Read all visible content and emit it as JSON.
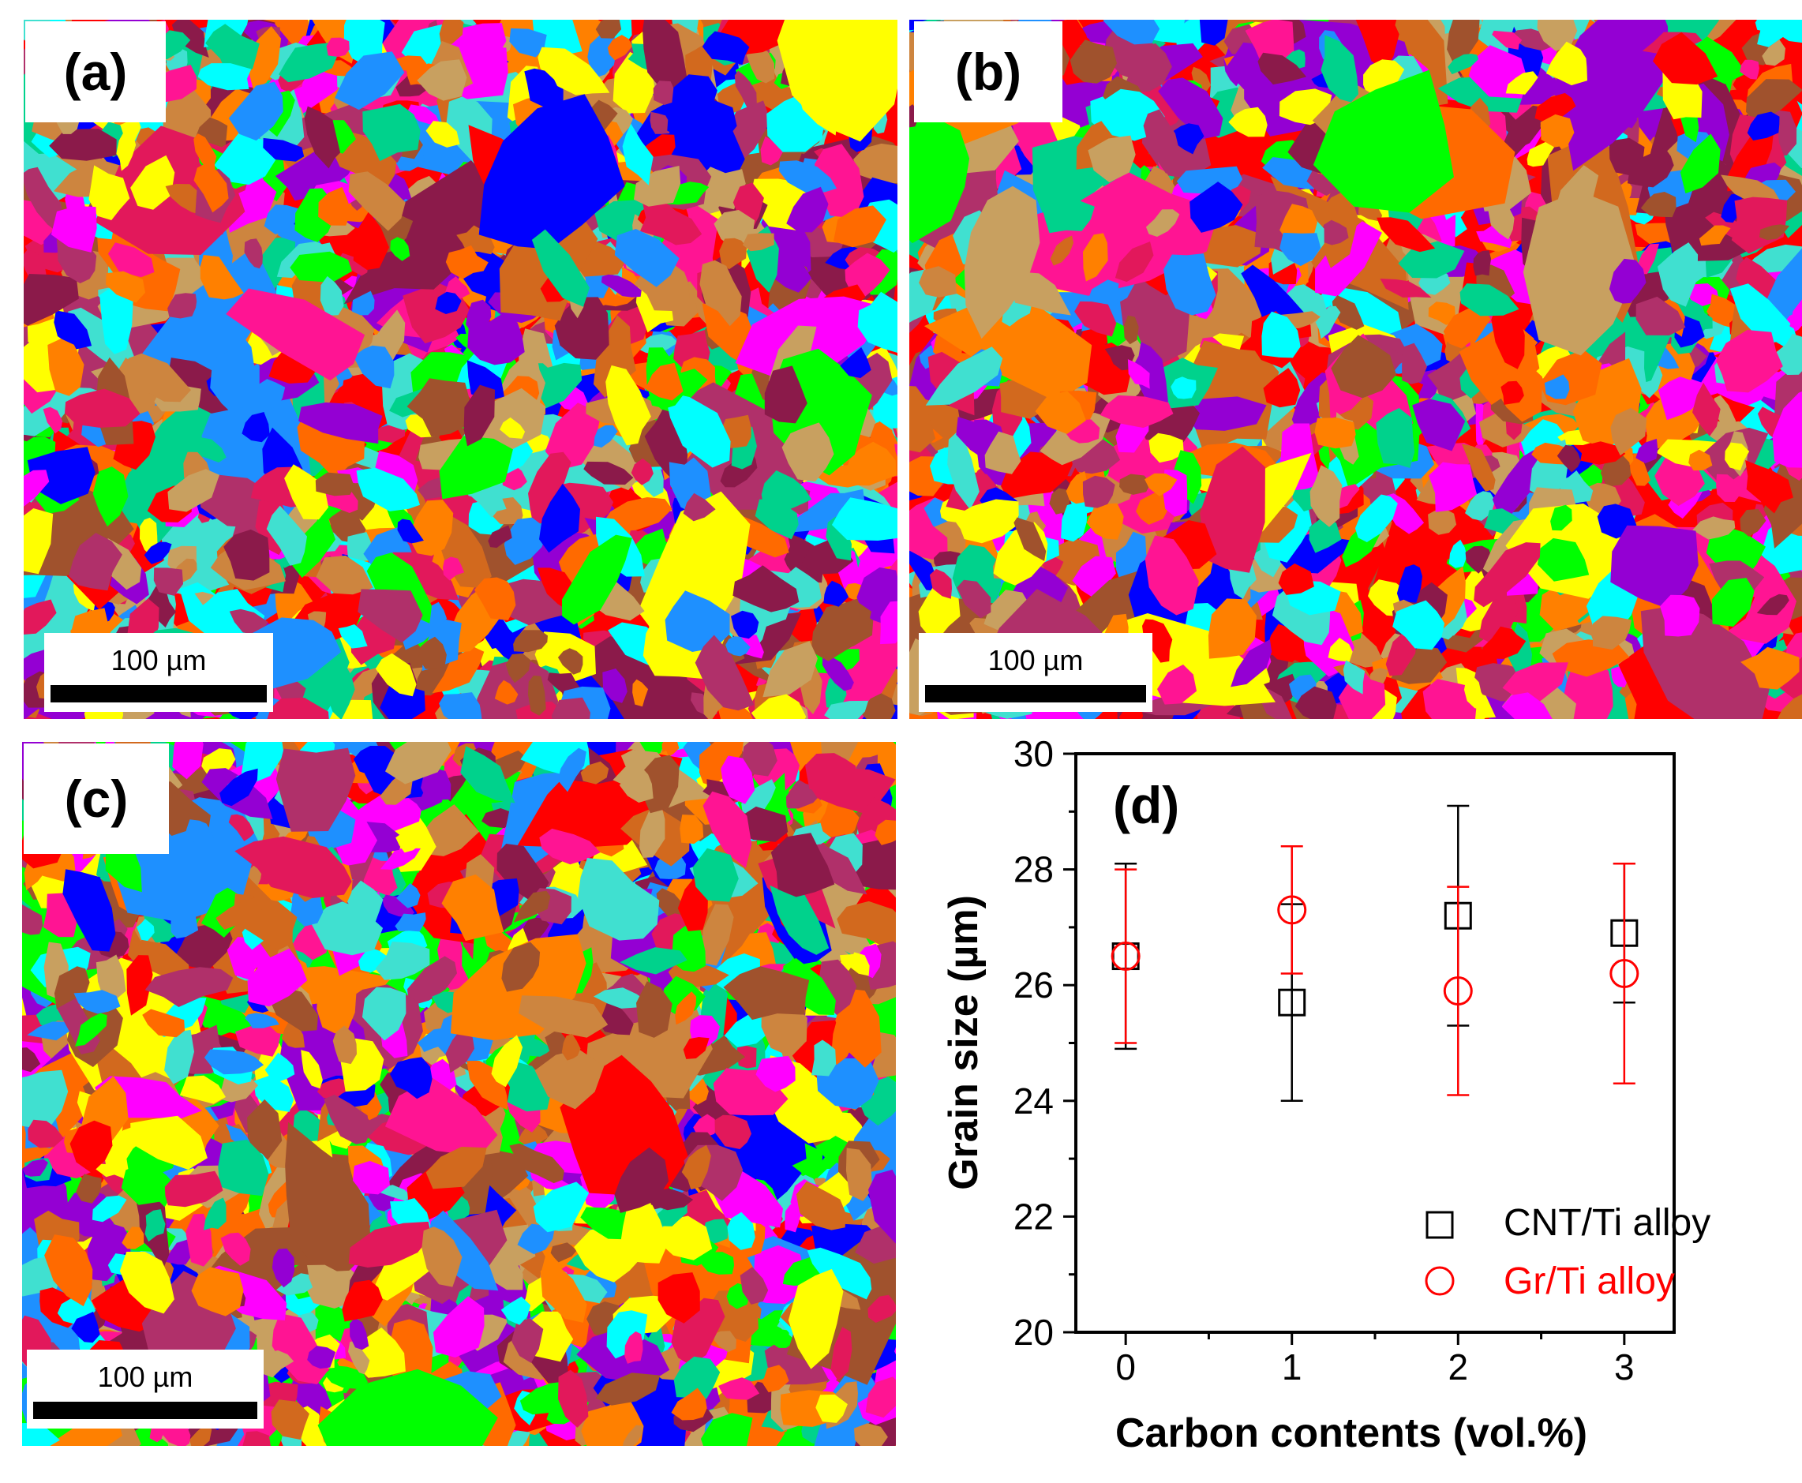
{
  "panels": [
    {
      "id": "a",
      "label": "(a)",
      "scale_text": "100 µm"
    },
    {
      "id": "b",
      "label": "(b)",
      "scale_text": "100 µm"
    },
    {
      "id": "c",
      "label": "(c)",
      "scale_text": "100 µm"
    }
  ],
  "grain_colors": [
    "#ff00ff",
    "#0000ff",
    "#00d28c",
    "#00ffff",
    "#ff0000",
    "#00ff00",
    "#ffff00",
    "#ff8000",
    "#ff1493",
    "#9400d3",
    "#a0522d",
    "#1e90ff",
    "#e2185b",
    "#d2691e",
    "#cd853f",
    "#8b1a4a",
    "#b0306a",
    "#40e0d0",
    "#ff6a00",
    "#c8a060"
  ],
  "chart_data": {
    "type": "scatter",
    "panel_label": "(d)",
    "xlabel": "Carbon contents (vol.%)",
    "ylabel": "Grain size (µm)",
    "xlim": [
      -0.3,
      3.3
    ],
    "ylim": [
      20,
      30
    ],
    "xticks": [
      0,
      1,
      2,
      3
    ],
    "yticks": [
      20,
      22,
      24,
      26,
      28,
      30
    ],
    "legend_position": "bottom-right",
    "series": [
      {
        "name": "CNT/Ti alloy",
        "color": "#000000",
        "marker": "square",
        "x": [
          0,
          1,
          2,
          3
        ],
        "y": [
          26.5,
          25.7,
          27.2,
          26.9
        ],
        "err_low": [
          24.9,
          24.0,
          25.3,
          25.7
        ],
        "err_high": [
          28.1,
          27.4,
          29.1,
          28.1
        ]
      },
      {
        "name": "Gr/Ti alloy",
        "color": "#ff0000",
        "marker": "circle",
        "x": [
          0,
          1,
          2,
          3
        ],
        "y": [
          26.5,
          27.3,
          25.9,
          26.2
        ],
        "err_low": [
          25.0,
          26.2,
          24.1,
          24.3
        ],
        "err_high": [
          28.0,
          28.4,
          27.7,
          28.1
        ]
      }
    ]
  }
}
